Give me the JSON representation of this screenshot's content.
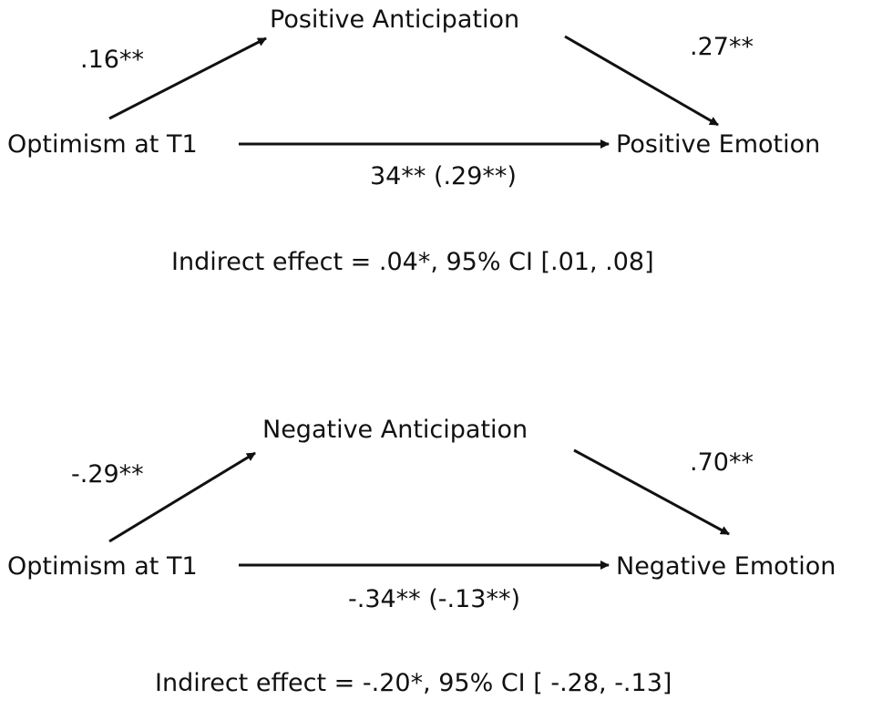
{
  "models": [
    {
      "mediator": "Positive Anticipation",
      "predictor": "Optimism at T1",
      "outcome": "Positive Emotion",
      "path_a": ".16**",
      "path_b": ".27**",
      "path_c": "34** (.29**)",
      "indirect": "Indirect effect = .04*, 95% CI [.01, .08]"
    },
    {
      "mediator": "Negative Anticipation",
      "predictor": "Optimism at T1",
      "outcome": "Negative Emotion",
      "path_a": "-.29**",
      "path_b": ".70**",
      "path_c": "-.34** (-.13**)",
      "indirect": "Indirect effect = -.20*, 95% CI [ -.28, -.13]"
    }
  ]
}
